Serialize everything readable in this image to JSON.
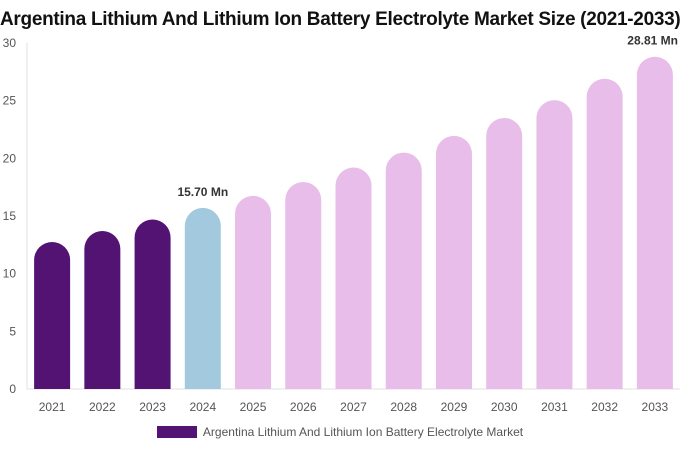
{
  "chart_data": {
    "type": "bar",
    "title": "Argentina Lithium And Lithium Ion Battery Electrolyte Market Size (2021-2033)",
    "categories": [
      "2021",
      "2022",
      "2023",
      "2024",
      "2025",
      "2026",
      "2027",
      "2028",
      "2029",
      "2030",
      "2031",
      "2032",
      "2033"
    ],
    "series": [
      {
        "name": "Argentina Lithium And Lithium Ion Battery Electrolyte Market",
        "values": [
          12.75,
          13.7,
          14.7,
          15.7,
          16.75,
          17.95,
          19.2,
          20.5,
          21.95,
          23.5,
          25.05,
          26.9,
          28.81
        ]
      }
    ],
    "data_labels": [
      {
        "category": "2024",
        "text": "15.70 Mn"
      },
      {
        "category": "2033",
        "text": "28.81 Mn"
      }
    ],
    "yticks": [
      0,
      5,
      10,
      15,
      20,
      25,
      30
    ],
    "ylim": [
      0,
      30
    ],
    "grid": false,
    "legend_position": "bottom",
    "colors": {
      "historical": "#531373",
      "current": "#a3c9df",
      "forecast": "#e8bde9"
    },
    "color_groups": [
      "historical",
      "historical",
      "historical",
      "current",
      "forecast",
      "forecast",
      "forecast",
      "forecast",
      "forecast",
      "forecast",
      "forecast",
      "forecast",
      "forecast"
    ]
  }
}
